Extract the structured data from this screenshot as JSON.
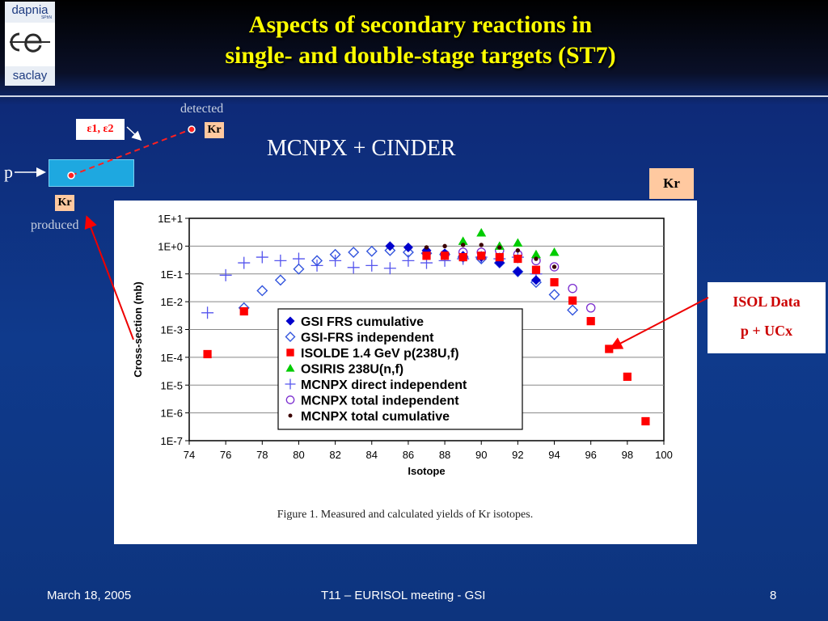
{
  "logo": {
    "top": "dapnia",
    "top_small": "SPhN",
    "bottom": "saclay"
  },
  "title": {
    "line1": "Aspects of secondary reactions in",
    "line2": "single- and double-stage targets (ST7)"
  },
  "diagram": {
    "detected": "detected",
    "produced": "produced",
    "kr_label": "Kr",
    "eps_label": "ε1, ε2",
    "proton_label": "p",
    "method": "MCNPX + CINDER",
    "kr_side": "Kr"
  },
  "isol_box": {
    "line1": "ISOL Data",
    "line2": "p + UCx"
  },
  "footer": {
    "date": "March 18, 2005",
    "center": "T11 – EURISOL meeting - GSI",
    "page": "8"
  },
  "colors": {
    "title": "#ffff00",
    "background": "#0f3a8c",
    "isolde": "#ff0000",
    "osiris": "#00cc00",
    "gsi": "#0000cc",
    "mcnpx_direct": "#5555ee",
    "mcnpx_total": "#7a2ccf",
    "cumulative": "#3b0000"
  },
  "chart_data": {
    "type": "scatter",
    "xlabel": "Isotope",
    "ylabel": "Cross-section (mb)",
    "x_range": [
      74,
      100
    ],
    "x_ticks": [
      "74",
      "76",
      "78",
      "80",
      "82",
      "84",
      "86",
      "88",
      "90",
      "92",
      "94",
      "96",
      "98",
      "100"
    ],
    "y_scale": "log",
    "y_ticks": [
      "1E+1",
      "1E+0",
      "1E-1",
      "1E-2",
      "1E-3",
      "1E-4",
      "1E-5",
      "1E-6",
      "1E-7"
    ],
    "y_exponent_range": [
      -7,
      1
    ],
    "grid": "horizontal",
    "caption": "Figure 1.   Measured and calculated yields of Kr isotopes.",
    "series": [
      {
        "name": "GSI FRS cumulative",
        "marker": "diamond-filled",
        "color": "#0000cc",
        "x": [
          85,
          86,
          87,
          88,
          89,
          90,
          91,
          92,
          93
        ],
        "y": [
          1.0,
          0.9,
          0.7,
          0.55,
          0.45,
          0.4,
          0.25,
          0.12,
          0.06
        ]
      },
      {
        "name": "GSI-FRS independent",
        "marker": "diamond-open",
        "color": "#3355dd",
        "x": [
          77,
          78,
          79,
          80,
          81,
          82,
          83,
          84,
          85,
          86,
          87,
          88,
          89,
          90,
          91,
          92,
          93,
          94,
          95
        ],
        "y": [
          0.006,
          0.025,
          0.06,
          0.15,
          0.3,
          0.5,
          0.6,
          0.65,
          0.7,
          0.6,
          0.55,
          0.5,
          0.4,
          0.35,
          0.25,
          0.12,
          0.05,
          0.018,
          0.005
        ]
      },
      {
        "name": "ISOLDE 1.4 GeV p(238U,f)",
        "marker": "square-filled",
        "color": "#ff0000",
        "x": [
          75,
          77,
          87,
          88,
          89,
          90,
          91,
          92,
          93,
          94,
          95,
          96,
          97,
          98,
          99
        ],
        "y": [
          0.00013,
          0.0045,
          0.45,
          0.45,
          0.4,
          0.45,
          0.4,
          0.35,
          0.14,
          0.05,
          0.011,
          0.002,
          0.0002,
          2e-05,
          5e-07
        ]
      },
      {
        "name": "OSIRIS 238U(n,f)",
        "marker": "triangle-filled",
        "color": "#00cc00",
        "x": [
          89,
          90,
          91,
          92,
          93,
          94
        ],
        "y": [
          1.5,
          3.0,
          1.0,
          1.3,
          0.5,
          0.6
        ]
      },
      {
        "name": "MCNPX direct independent",
        "marker": "plus",
        "color": "#5555ee",
        "x": [
          75,
          76,
          77,
          78,
          79,
          80,
          81,
          82,
          83,
          84,
          85,
          86,
          87,
          88,
          89,
          90,
          91,
          92,
          93
        ],
        "y": [
          0.004,
          0.09,
          0.25,
          0.4,
          0.3,
          0.35,
          0.2,
          0.3,
          0.17,
          0.2,
          0.16,
          0.3,
          0.25,
          0.3,
          0.35,
          0.4,
          0.35,
          0.4,
          0.1
        ]
      },
      {
        "name": "MCNPX total independent",
        "marker": "circle-open",
        "color": "#7a2ccf",
        "x": [
          88,
          89,
          90,
          91,
          92,
          93,
          94,
          95,
          96
        ],
        "y": [
          0.5,
          0.6,
          0.6,
          0.7,
          0.5,
          0.3,
          0.18,
          0.03,
          0.006
        ]
      },
      {
        "name": "MCNPX total cumulative",
        "marker": "circle-filled",
        "color": "#3b0000",
        "x": [
          87,
          88,
          89,
          90,
          91,
          92,
          93,
          94
        ],
        "y": [
          0.9,
          1.0,
          1.1,
          1.1,
          0.9,
          0.7,
          0.35,
          0.18
        ]
      }
    ]
  }
}
